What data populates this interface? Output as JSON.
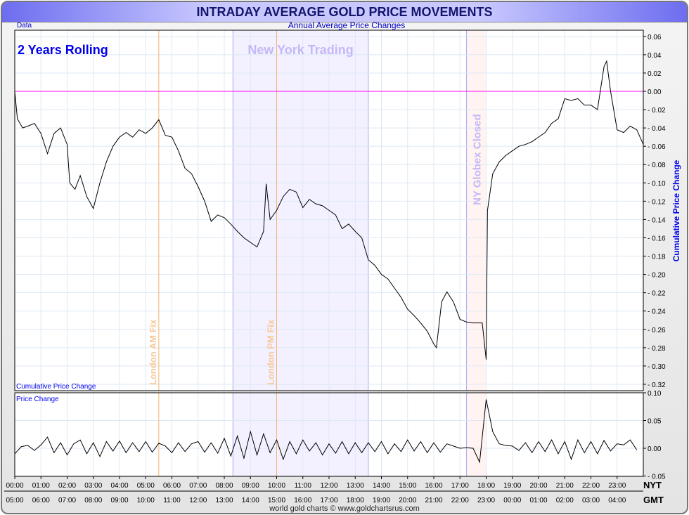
{
  "header": {
    "title": "INTRADAY AVERAGE GOLD PRICE MOVEMENTS",
    "data_label": "Data",
    "subtitle": "Annual Average Price Changes",
    "footer": "world gold charts © www.goldchartsrus.com"
  },
  "chart_data": [
    {
      "type": "line",
      "title": "Annual Average Price Changes",
      "panel_label": "Cumulative Price Change",
      "ylabel": "Cumulative Price Change",
      "annotation": "2 Years Rolling",
      "ylim": [
        -0.33,
        0.065
      ],
      "yticks": [
        0.06,
        0.04,
        0.02,
        0.0,
        -0.02,
        -0.04,
        -0.06,
        -0.08,
        -0.1,
        -0.12,
        -0.14,
        -0.16,
        -0.18,
        -0.2,
        -0.22,
        -0.24,
        -0.26,
        -0.28,
        -0.3,
        -0.32
      ],
      "reference_line": 0.0,
      "x": [
        0,
        0.1,
        0.3,
        0.5,
        0.75,
        1,
        1.25,
        1.5,
        1.75,
        2,
        2.1,
        2.3,
        2.5,
        2.75,
        3,
        3.25,
        3.5,
        3.75,
        4,
        4.25,
        4.5,
        4.75,
        5,
        5.25,
        5.5,
        5.75,
        6,
        6.25,
        6.5,
        6.75,
        7,
        7.25,
        7.5,
        7.75,
        8,
        8.25,
        8.5,
        8.75,
        9,
        9.25,
        9.5,
        9.6,
        9.75,
        10,
        10.25,
        10.5,
        10.75,
        11,
        11.25,
        11.5,
        11.75,
        12,
        12.25,
        12.5,
        12.75,
        13,
        13.25,
        13.5,
        13.75,
        14,
        14.25,
        14.5,
        14.75,
        15,
        15.25,
        15.5,
        15.75,
        16,
        16.1,
        16.3,
        16.5,
        16.75,
        17,
        17.25,
        17.5,
        17.75,
        17.85,
        18,
        18.05,
        18.25,
        18.5,
        18.75,
        19,
        19.25,
        19.5,
        19.75,
        20,
        20.25,
        20.5,
        20.75,
        21,
        21.25,
        21.5,
        21.75,
        22,
        22.25,
        22.5,
        22.6,
        22.75,
        23,
        23.25,
        23.5,
        23.75,
        24
      ],
      "y": [
        0,
        -0.03,
        -0.04,
        -0.038,
        -0.035,
        -0.046,
        -0.068,
        -0.046,
        -0.04,
        -0.058,
        -0.1,
        -0.107,
        -0.092,
        -0.115,
        -0.128,
        -0.1,
        -0.077,
        -0.06,
        -0.05,
        -0.045,
        -0.05,
        -0.042,
        -0.046,
        -0.04,
        -0.031,
        -0.048,
        -0.05,
        -0.065,
        -0.084,
        -0.09,
        -0.104,
        -0.12,
        -0.142,
        -0.135,
        -0.138,
        -0.145,
        -0.153,
        -0.16,
        -0.165,
        -0.17,
        -0.153,
        -0.101,
        -0.14,
        -0.13,
        -0.115,
        -0.107,
        -0.11,
        -0.127,
        -0.118,
        -0.123,
        -0.125,
        -0.13,
        -0.135,
        -0.15,
        -0.145,
        -0.153,
        -0.16,
        -0.184,
        -0.19,
        -0.2,
        -0.205,
        -0.215,
        -0.225,
        -0.238,
        -0.245,
        -0.253,
        -0.262,
        -0.276,
        -0.28,
        -0.23,
        -0.219,
        -0.23,
        -0.249,
        -0.252,
        -0.253,
        -0.253,
        -0.253,
        -0.293,
        -0.13,
        -0.09,
        -0.077,
        -0.07,
        -0.065,
        -0.06,
        -0.058,
        -0.055,
        -0.05,
        -0.045,
        -0.035,
        -0.03,
        -0.008,
        -0.01,
        -0.008,
        -0.015,
        -0.015,
        -0.02,
        0.027,
        0.033,
        0.0,
        -0.042,
        -0.045,
        -0.038,
        -0.042,
        -0.058
      ]
    },
    {
      "type": "line",
      "panel_label": "Price Change",
      "ylim": [
        -0.05,
        0.1
      ],
      "yticks": [
        0.1,
        0.05,
        0.0,
        -0.05
      ],
      "x_step_hours": 0.25,
      "y": [
        -0.01,
        0.003,
        0.005,
        -0.004,
        0.006,
        0.02,
        -0.008,
        0.01,
        -0.012,
        0.008,
        0.015,
        -0.01,
        0.01,
        -0.015,
        0.012,
        -0.005,
        0.013,
        -0.008,
        0.01,
        -0.006,
        0.012,
        -0.007,
        0.009,
        0.004,
        -0.008,
        0.01,
        -0.006,
        0.008,
        0.012,
        -0.007,
        0.01,
        -0.009,
        0.018,
        -0.014,
        0.022,
        -0.018,
        0.03,
        -0.012,
        0.026,
        -0.008,
        0.015,
        -0.02,
        0.012,
        -0.01,
        0.015,
        -0.005,
        0.01,
        -0.012,
        0.008,
        -0.009,
        0.012,
        -0.01,
        0.01,
        -0.008,
        0.01,
        -0.006,
        0.012,
        -0.01,
        0.008,
        -0.006,
        0.015,
        -0.005,
        0.012,
        -0.008,
        0.01,
        -0.007,
        0.008,
        0.004,
        0.0,
        0.001,
        0.0,
        -0.025,
        0.088,
        0.03,
        0.008,
        0.005,
        0.004,
        -0.004,
        0.01,
        -0.008,
        0.012,
        -0.006,
        0.015,
        -0.01,
        0.012,
        -0.02,
        0.015,
        -0.008,
        0.012,
        -0.01,
        0.014,
        -0.005,
        0.008,
        0.006,
        0.015,
        -0.003
      ]
    },
    {
      "type": "x-axis",
      "ticks_nyt": [
        "00:00",
        "01:00",
        "02:00",
        "03:00",
        "04:00",
        "05:00",
        "06:00",
        "07:00",
        "08:00",
        "09:00",
        "10:00",
        "11:00",
        "12:00",
        "13:00",
        "14:00",
        "15:00",
        "16:00",
        "17:00",
        "18:00",
        "19:00",
        "20:00",
        "21:00",
        "22:00",
        "23:00"
      ],
      "ticks_gmt": [
        "05:00",
        "06:00",
        "07:00",
        "08:00",
        "09:00",
        "10:00",
        "11:00",
        "12:00",
        "13:00",
        "14:00",
        "15:00",
        "16:00",
        "17:00",
        "18:00",
        "19:00",
        "20:00",
        "21:00",
        "22:00",
        "23:00",
        "00:00",
        "01:00",
        "02:00",
        "03:00",
        "04:00"
      ],
      "nyt_label": "NYT",
      "gmt_label": "GMT",
      "markers": [
        {
          "label": "London AM Fix",
          "hour": 5.5
        },
        {
          "label": "London PM Fix",
          "hour": 10.0
        }
      ],
      "bands": [
        {
          "label": "New York Trading",
          "from": 8.33,
          "to": 13.5
        },
        {
          "label": "NY Globex Closed",
          "from": 17.25,
          "to": 18.0
        }
      ]
    }
  ],
  "colors": {
    "accent": "#0000ee",
    "reference": "#ff00ff",
    "fix": "#f5b26b",
    "band": "#f3f1ff",
    "band_edge": "#a9a9f5",
    "globex": "#fff4f2"
  }
}
